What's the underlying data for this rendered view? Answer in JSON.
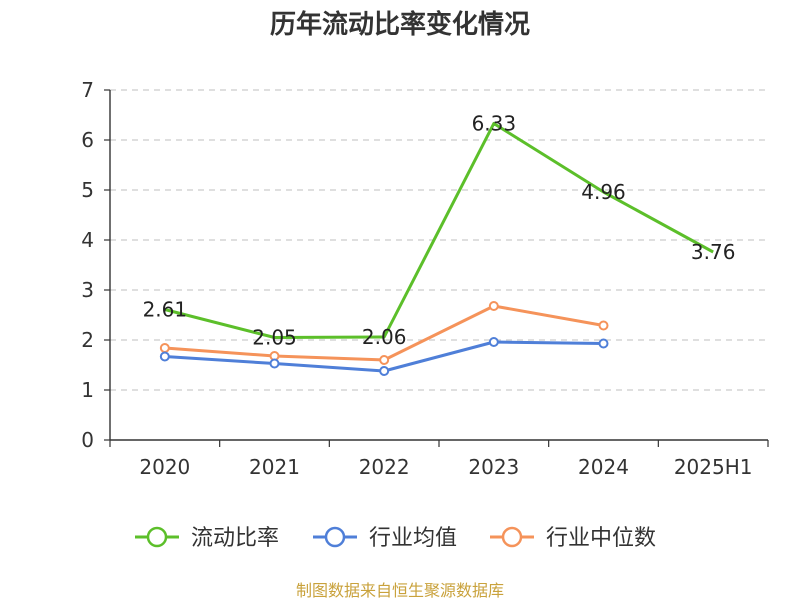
{
  "chart_data": {
    "type": "line",
    "title": "历年流动比率变化情况",
    "categories": [
      "2020",
      "2021",
      "2022",
      "2023",
      "2024",
      "2025H1"
    ],
    "ylim": [
      0,
      7
    ],
    "yticks": [
      "0",
      "1",
      "2",
      "3",
      "4",
      "5",
      "6",
      "7"
    ],
    "grid": true,
    "legend_position": "bottom",
    "series": [
      {
        "name": "流动比率",
        "color": "#5cbf2a",
        "values": [
          2.61,
          2.05,
          2.06,
          6.33,
          4.96,
          3.76
        ],
        "labels": [
          "2.61",
          "2.05",
          "2.06",
          "6.33",
          "4.96",
          "3.76"
        ]
      },
      {
        "name": "行业均值",
        "color": "#4f7fd8",
        "values": [
          1.67,
          1.53,
          1.38,
          1.96,
          1.93,
          null
        ]
      },
      {
        "name": "行业中位数",
        "color": "#f5935a",
        "values": [
          1.84,
          1.68,
          1.6,
          2.68,
          2.29,
          null
        ]
      }
    ],
    "source": "制图数据来自恒生聚源数据库"
  }
}
